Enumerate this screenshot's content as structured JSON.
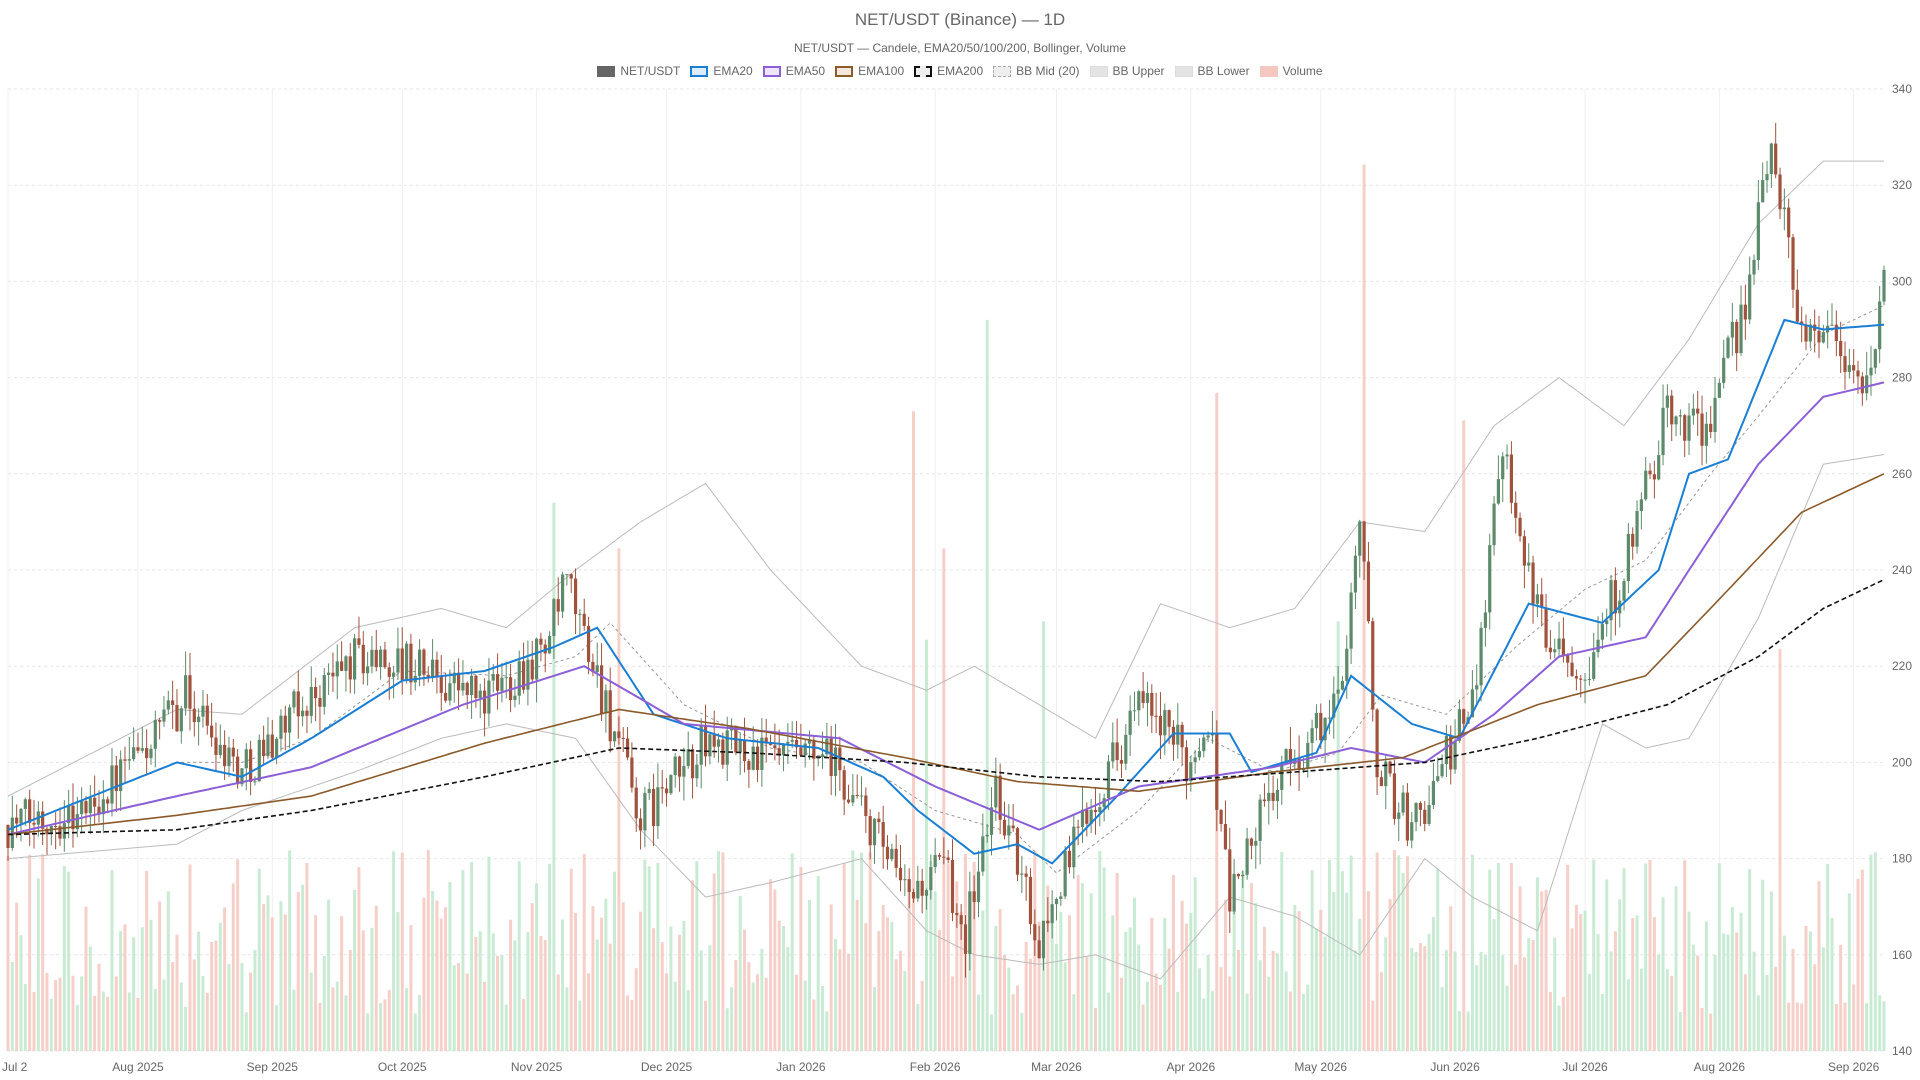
{
  "header": {
    "title": "NET/USDT (Binance) — 1D",
    "subtitle": "NET/USDT — Candele, EMA20/50/100/200, Bollinger, Volume"
  },
  "legend": [
    {
      "label": "NET/USDT",
      "color": "#666666",
      "style": "solid-fill"
    },
    {
      "label": "EMA20",
      "color": "#1a7fd4",
      "style": "box"
    },
    {
      "label": "EMA50",
      "color": "#8b5fd6",
      "style": "box"
    },
    {
      "label": "EMA100",
      "color": "#8b5a2b",
      "style": "box"
    },
    {
      "label": "EMA200",
      "color": "#111111",
      "style": "dashed-box"
    },
    {
      "label": "BB Mid (20)",
      "color": "#bbbbbb",
      "style": "dotted-box"
    },
    {
      "label": "BB Upper",
      "color": "#cccccc",
      "style": "grey-box"
    },
    {
      "label": "BB Lower",
      "color": "#cccccc",
      "style": "grey-box"
    },
    {
      "label": "Volume",
      "color": "#f4c7c0",
      "style": "pink-fill"
    }
  ],
  "chart_data": {
    "type": "candlestick",
    "ylim": [
      140,
      340
    ],
    "y_ticks": [
      "140",
      "160",
      "180",
      "200",
      "220",
      "240",
      "260",
      "280",
      "300",
      "320",
      "340"
    ],
    "x_labels": [
      "Jul 2",
      "Aug 2025",
      "Sep 2025",
      "Oct 2025",
      "Nov 2025",
      "Dec 2025",
      "Jan 2026",
      "Feb 2026",
      "Mar 2026",
      "Apr 2026",
      "May 2026",
      "Jun 2026",
      "Jul 2026",
      "Aug 2026",
      "Sep 2026"
    ],
    "x_start": "2025-07-02",
    "x_end": "2026-09-08",
    "up_color": "#5d8a6a",
    "down_color": "#a0523d",
    "volume_up_color": "#bfe8cc",
    "volume_down_color": "#f4c7c0",
    "close_anchors": [
      [
        "2025-07-02",
        187
      ],
      [
        "2025-07-20",
        190
      ],
      [
        "2025-08-05",
        205
      ],
      [
        "2025-08-12",
        214
      ],
      [
        "2025-08-25",
        198
      ],
      [
        "2025-09-05",
        209
      ],
      [
        "2025-09-20",
        222
      ],
      [
        "2025-10-05",
        220
      ],
      [
        "2025-10-20",
        213
      ],
      [
        "2025-11-03",
        224
      ],
      [
        "2025-11-08",
        237
      ],
      [
        "2025-11-15",
        218
      ],
      [
        "2025-11-25",
        188
      ],
      [
        "2025-12-10",
        204
      ],
      [
        "2025-12-25",
        201
      ],
      [
        "2026-01-08",
        200
      ],
      [
        "2026-01-18",
        185
      ],
      [
        "2026-01-25",
        172
      ],
      [
        "2026-02-03",
        178
      ],
      [
        "2026-02-08",
        165
      ],
      [
        "2026-02-15",
        195
      ],
      [
        "2026-02-25",
        163
      ],
      [
        "2026-03-08",
        190
      ],
      [
        "2026-03-20",
        212
      ],
      [
        "2026-04-01",
        200
      ],
      [
        "2026-04-05",
        210
      ],
      [
        "2026-04-10",
        172
      ],
      [
        "2026-04-20",
        195
      ],
      [
        "2026-05-05",
        212
      ],
      [
        "2026-05-10",
        252
      ],
      [
        "2026-05-14",
        200
      ],
      [
        "2026-05-22",
        186
      ],
      [
        "2026-06-05",
        212
      ],
      [
        "2026-06-12",
        268
      ],
      [
        "2026-06-20",
        230
      ],
      [
        "2026-07-01",
        220
      ],
      [
        "2026-07-10",
        240
      ],
      [
        "2026-07-20",
        272
      ],
      [
        "2026-07-30",
        270
      ],
      [
        "2026-08-08",
        300
      ],
      [
        "2026-08-13",
        330
      ],
      [
        "2026-08-20",
        290
      ],
      [
        "2026-08-27",
        290
      ],
      [
        "2026-09-01",
        280
      ],
      [
        "2026-09-05",
        278
      ],
      [
        "2026-09-08",
        305
      ]
    ],
    "series": [
      {
        "name": "EMA20",
        "anchors": [
          [
            "2025-07-02",
            186
          ],
          [
            "2025-08-10",
            200
          ],
          [
            "2025-08-25",
            197
          ],
          [
            "2025-09-10",
            205
          ],
          [
            "2025-10-01",
            217
          ],
          [
            "2025-10-20",
            219
          ],
          [
            "2025-11-05",
            224
          ],
          [
            "2025-11-15",
            228
          ],
          [
            "2025-11-28",
            210
          ],
          [
            "2025-12-15",
            205
          ],
          [
            "2026-01-05",
            203
          ],
          [
            "2026-01-20",
            197
          ],
          [
            "2026-01-28",
            190
          ],
          [
            "2026-02-10",
            181
          ],
          [
            "2026-02-20",
            183
          ],
          [
            "2026-02-28",
            179
          ],
          [
            "2026-03-15",
            193
          ],
          [
            "2026-03-28",
            206
          ],
          [
            "2026-04-10",
            206
          ],
          [
            "2026-04-15",
            198
          ],
          [
            "2026-04-30",
            202
          ],
          [
            "2026-05-08",
            218
          ],
          [
            "2026-05-22",
            208
          ],
          [
            "2026-06-02",
            205
          ],
          [
            "2026-06-18",
            233
          ],
          [
            "2026-07-05",
            229
          ],
          [
            "2026-07-18",
            240
          ],
          [
            "2026-07-25",
            260
          ],
          [
            "2026-08-03",
            263
          ],
          [
            "2026-08-16",
            292
          ],
          [
            "2026-08-25",
            290
          ],
          [
            "2026-09-08",
            291
          ]
        ]
      },
      {
        "name": "EMA50",
        "anchors": [
          [
            "2025-07-02",
            185
          ],
          [
            "2025-08-10",
            193
          ],
          [
            "2025-09-10",
            199
          ],
          [
            "2025-10-15",
            212
          ],
          [
            "2025-11-12",
            220
          ],
          [
            "2025-12-05",
            208
          ],
          [
            "2026-01-10",
            205
          ],
          [
            "2026-02-01",
            195
          ],
          [
            "2026-02-25",
            186
          ],
          [
            "2026-03-20",
            195
          ],
          [
            "2026-04-20",
            199
          ],
          [
            "2026-05-08",
            203
          ],
          [
            "2026-05-25",
            200
          ],
          [
            "2026-06-10",
            210
          ],
          [
            "2026-06-25",
            222
          ],
          [
            "2026-07-15",
            226
          ],
          [
            "2026-07-25",
            240
          ],
          [
            "2026-08-10",
            262
          ],
          [
            "2026-08-25",
            276
          ],
          [
            "2026-09-08",
            279
          ]
        ]
      },
      {
        "name": "EMA100",
        "anchors": [
          [
            "2025-07-02",
            185
          ],
          [
            "2025-08-10",
            189
          ],
          [
            "2025-09-10",
            193
          ],
          [
            "2025-10-20",
            204
          ],
          [
            "2025-11-20",
            211
          ],
          [
            "2025-12-20",
            207
          ],
          [
            "2026-01-25",
            201
          ],
          [
            "2026-02-20",
            196
          ],
          [
            "2026-03-20",
            194
          ],
          [
            "2026-04-20",
            198
          ],
          [
            "2026-05-20",
            201
          ],
          [
            "2026-06-20",
            212
          ],
          [
            "2026-07-15",
            218
          ],
          [
            "2026-07-31",
            233
          ],
          [
            "2026-08-20",
            252
          ],
          [
            "2026-09-08",
            260
          ]
        ]
      },
      {
        "name": "EMA200",
        "anchors": [
          [
            "2025-07-02",
            185
          ],
          [
            "2025-08-10",
            186
          ],
          [
            "2025-09-10",
            190
          ],
          [
            "2025-10-20",
            197
          ],
          [
            "2025-11-20",
            203
          ],
          [
            "2025-12-20",
            202
          ],
          [
            "2026-01-25",
            200
          ],
          [
            "2026-02-25",
            197
          ],
          [
            "2026-03-25",
            196
          ],
          [
            "2026-04-25",
            198
          ],
          [
            "2026-05-25",
            200
          ],
          [
            "2026-06-20",
            205
          ],
          [
            "2026-07-20",
            212
          ],
          [
            "2026-08-10",
            222
          ],
          [
            "2026-08-25",
            232
          ],
          [
            "2026-09-08",
            238
          ]
        ]
      },
      {
        "name": "BB Mid (20)",
        "anchors": [
          [
            "2025-07-02",
            186
          ],
          [
            "2025-08-10",
            200
          ],
          [
            "2025-08-25",
            200
          ],
          [
            "2025-09-10",
            205
          ],
          [
            "2025-10-01",
            219
          ],
          [
            "2025-10-25",
            218
          ],
          [
            "2025-11-10",
            222
          ],
          [
            "2025-11-18",
            229
          ],
          [
            "2025-12-05",
            212
          ],
          [
            "2025-12-25",
            203
          ],
          [
            "2026-01-15",
            200
          ],
          [
            "2026-02-01",
            190
          ],
          [
            "2026-02-20",
            185
          ],
          [
            "2026-03-01",
            177
          ],
          [
            "2026-03-20",
            190
          ],
          [
            "2026-04-05",
            205
          ],
          [
            "2026-04-20",
            198
          ],
          [
            "2026-05-05",
            202
          ],
          [
            "2026-05-15",
            214
          ],
          [
            "2026-05-30",
            210
          ],
          [
            "2026-06-15",
            224
          ],
          [
            "2026-07-01",
            236
          ],
          [
            "2026-07-15",
            242
          ],
          [
            "2026-07-30",
            260
          ],
          [
            "2026-08-10",
            272
          ],
          [
            "2026-08-25",
            289
          ],
          [
            "2026-09-08",
            295
          ]
        ]
      },
      {
        "name": "BB Upper",
        "anchors": [
          [
            "2025-07-02",
            193
          ],
          [
            "2025-08-10",
            211
          ],
          [
            "2025-08-25",
            210
          ],
          [
            "2025-09-20",
            228
          ],
          [
            "2025-10-10",
            232
          ],
          [
            "2025-10-25",
            228
          ],
          [
            "2025-11-10",
            240
          ],
          [
            "2025-11-25",
            250
          ],
          [
            "2025-12-10",
            258
          ],
          [
            "2025-12-25",
            240
          ],
          [
            "2026-01-15",
            220
          ],
          [
            "2026-01-30",
            215
          ],
          [
            "2026-02-10",
            220
          ],
          [
            "2026-02-25",
            212
          ],
          [
            "2026-03-10",
            205
          ],
          [
            "2026-03-25",
            233
          ],
          [
            "2026-04-10",
            228
          ],
          [
            "2026-04-25",
            232
          ],
          [
            "2026-05-10",
            250
          ],
          [
            "2026-05-25",
            248
          ],
          [
            "2026-06-10",
            270
          ],
          [
            "2026-06-25",
            280
          ],
          [
            "2026-07-10",
            270
          ],
          [
            "2026-07-25",
            288
          ],
          [
            "2026-08-10",
            312
          ],
          [
            "2026-08-25",
            325
          ],
          [
            "2026-09-08",
            325
          ]
        ]
      },
      {
        "name": "BB Lower",
        "anchors": [
          [
            "2025-07-02",
            180
          ],
          [
            "2025-08-10",
            183
          ],
          [
            "2025-08-25",
            190
          ],
          [
            "2025-09-20",
            198
          ],
          [
            "2025-10-10",
            205
          ],
          [
            "2025-10-25",
            208
          ],
          [
            "2025-11-10",
            205
          ],
          [
            "2025-11-25",
            186
          ],
          [
            "2025-12-10",
            172
          ],
          [
            "2025-12-25",
            175
          ],
          [
            "2026-01-15",
            180
          ],
          [
            "2026-01-30",
            165
          ],
          [
            "2026-02-10",
            160
          ],
          [
            "2026-02-25",
            158
          ],
          [
            "2026-03-10",
            160
          ],
          [
            "2026-03-25",
            155
          ],
          [
            "2026-04-10",
            172
          ],
          [
            "2026-04-25",
            168
          ],
          [
            "2026-05-10",
            160
          ],
          [
            "2026-05-25",
            180
          ],
          [
            "2026-06-05",
            172
          ],
          [
            "2026-06-20",
            165
          ],
          [
            "2026-07-05",
            208
          ],
          [
            "2026-07-15",
            203
          ],
          [
            "2026-07-25",
            205
          ],
          [
            "2026-08-10",
            230
          ],
          [
            "2026-08-25",
            262
          ],
          [
            "2026-09-08",
            264
          ]
        ]
      }
    ],
    "volume_spikes": [
      {
        "date": "2025-11-05",
        "value": 0.6
      },
      {
        "date": "2025-11-20",
        "value": 0.55
      },
      {
        "date": "2026-01-27",
        "value": 0.7
      },
      {
        "date": "2026-01-30",
        "value": 0.45
      },
      {
        "date": "2026-02-03",
        "value": 0.55
      },
      {
        "date": "2026-02-13",
        "value": 0.8
      },
      {
        "date": "2026-02-26",
        "value": 0.47
      },
      {
        "date": "2026-04-07",
        "value": 0.72
      },
      {
        "date": "2026-05-05",
        "value": 0.47
      },
      {
        "date": "2026-05-11",
        "value": 0.97
      },
      {
        "date": "2026-06-03",
        "value": 0.69
      },
      {
        "date": "2026-08-15",
        "value": 0.44
      }
    ]
  }
}
